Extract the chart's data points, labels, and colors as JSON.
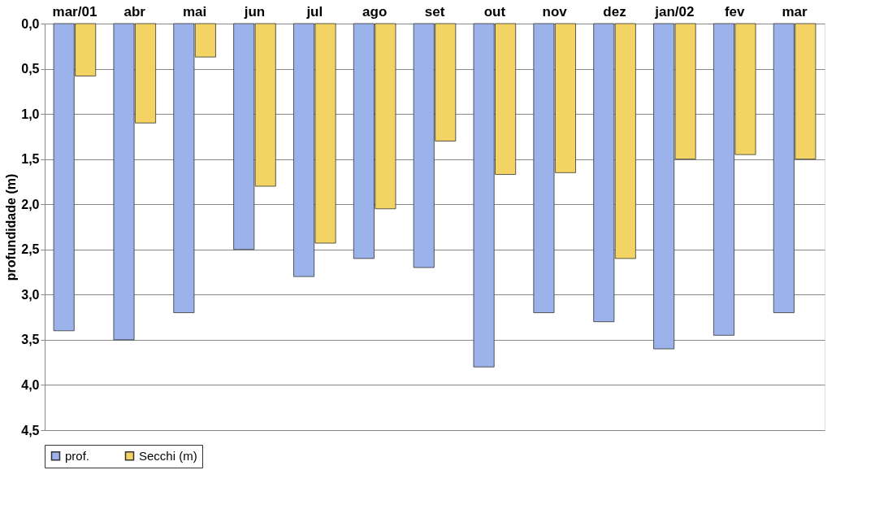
{
  "chart_data": {
    "type": "bar",
    "ylabel": "profundidade (m)",
    "categories": [
      "mar/01",
      "abr",
      "mai",
      "jun",
      "jul",
      "ago",
      "set",
      "out",
      "nov",
      "dez",
      "jan/02",
      "fev",
      "mar"
    ],
    "series": [
      {
        "name": "prof.",
        "color": "#9bb2ea",
        "values": [
          3.4,
          3.5,
          3.2,
          2.5,
          2.8,
          2.6,
          2.7,
          3.8,
          3.2,
          3.3,
          3.6,
          3.45,
          3.2
        ]
      },
      {
        "name": "Secchi (m)",
        "color": "#f2d364",
        "values": [
          0.58,
          1.1,
          0.37,
          1.8,
          2.43,
          2.05,
          1.3,
          1.67,
          1.65,
          2.6,
          1.5,
          1.45,
          1.5
        ]
      }
    ],
    "ylim": [
      4.5,
      0
    ],
    "yticks": [
      {
        "value": 0,
        "label": "0,0"
      },
      {
        "value": 0.5,
        "label": "0,5"
      },
      {
        "value": 1,
        "label": "1,0"
      },
      {
        "value": 1.5,
        "label": "1,5"
      },
      {
        "value": 2,
        "label": "2,0"
      },
      {
        "value": 2.5,
        "label": "2,5"
      },
      {
        "value": 3,
        "label": "3,0"
      },
      {
        "value": 3.5,
        "label": "3,5"
      },
      {
        "value": 4,
        "label": "4,0"
      },
      {
        "value": 4.5,
        "label": "4,5"
      }
    ],
    "grid": "y",
    "legend": "bottom"
  }
}
